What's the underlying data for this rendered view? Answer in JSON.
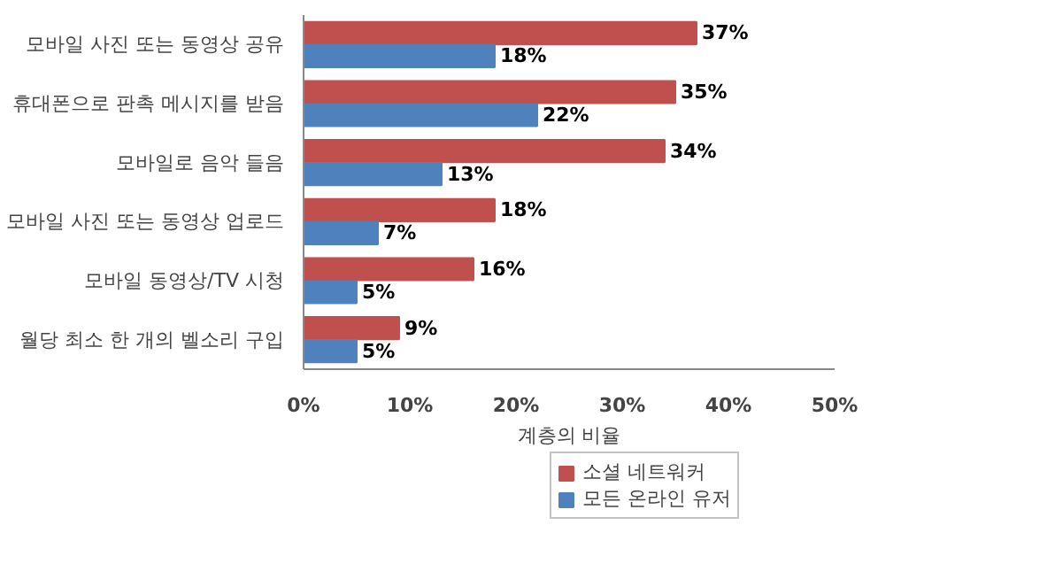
{
  "chart_data": {
    "type": "bar",
    "orientation": "horizontal",
    "xlabel": "계층의 비율",
    "categories": [
      "모바일 사진 또는 동영상 공유",
      "휴대폰으로 판촉 메시지를 받음",
      "모바일로 음악 들음",
      "모바일 사진 또는 동영상 업로드",
      "모바일 동영상/TV 시청",
      "월당 최소 한 개의 벨소리 구입"
    ],
    "series": [
      {
        "name": "소셜 네트워커",
        "color": "#c0504d",
        "values": [
          37,
          35,
          34,
          18,
          16,
          9
        ],
        "value_labels": [
          "37%",
          "35%",
          "34%",
          "18%",
          "16%",
          "9%"
        ]
      },
      {
        "name": "모든 온라인 유저",
        "color": "#4f81bd",
        "values": [
          18,
          22,
          13,
          7,
          5,
          5
        ],
        "value_labels": [
          "18%",
          "22%",
          "13%",
          "7%",
          "5%",
          "5%"
        ]
      }
    ],
    "xlim": [
      0,
      50
    ],
    "xticks": [
      {
        "value": 0,
        "label": "0%"
      },
      {
        "value": 10,
        "label": "10%"
      },
      {
        "value": 20,
        "label": "20%"
      },
      {
        "value": 30,
        "label": "30%"
      },
      {
        "value": 40,
        "label": "40%"
      },
      {
        "value": 50,
        "label": "50%"
      }
    ],
    "grid": false,
    "legend": "bottom"
  }
}
